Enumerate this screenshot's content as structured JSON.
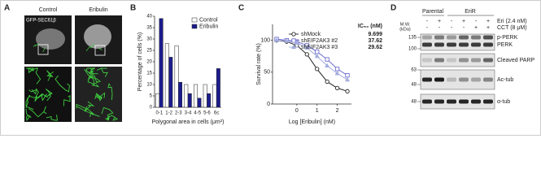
{
  "panel_a": {
    "label": "A",
    "columns": [
      "Control",
      "Eribulin"
    ],
    "marker": "GFP-SEC61β"
  },
  "chart_data": [
    {
      "type": "bar",
      "label": "B",
      "y_label": "Percentage of cells (%)",
      "x_label": "Polygonal area in cells (μm²)",
      "categories": [
        "0-1",
        "1-2",
        "2-3",
        "3-4",
        "4-5",
        "5-6",
        "6≤"
      ],
      "series": [
        {
          "name": "Control",
          "color": "#ffffff",
          "values": [
            6,
            28,
            27,
            10,
            10,
            10,
            10
          ]
        },
        {
          "name": "Eribulin",
          "color": "#1c1c8e",
          "values": [
            39,
            22,
            11,
            6,
            4,
            6,
            17
          ]
        }
      ],
      "ylim": [
        0,
        40
      ],
      "yticks": [
        0,
        5,
        10,
        15,
        20,
        25,
        30,
        35,
        40
      ]
    },
    {
      "type": "line",
      "label": "C",
      "y_label": "Survival rate (%)",
      "x_label": "Log [Eribulin] (nM)",
      "ic50_header": "IC₅₀ (nM)",
      "x": [
        -1,
        -0.5,
        0,
        0.5,
        1,
        1.5,
        2,
        2.5
      ],
      "series": [
        {
          "name": "shMock",
          "color": "#222222",
          "marker": "circle",
          "ic50": "9.699",
          "values": [
            100,
            98,
            92,
            78,
            55,
            35,
            25,
            20
          ]
        },
        {
          "name": "shEIF2AK3 #2",
          "color": "#6e6ecf",
          "marker": "square",
          "ic50": "37.62",
          "values": [
            102,
            100,
            98,
            92,
            82,
            70,
            55,
            45
          ]
        },
        {
          "name": "shEIF2AK3 #3",
          "color": "#a3acdc",
          "marker": "triangle",
          "ic50": "29.62",
          "values": [
            100,
            99,
            96,
            88,
            75,
            60,
            48,
            38
          ]
        }
      ],
      "xlim": [
        -1.2,
        2.7
      ],
      "xticks": [
        0,
        1,
        2
      ],
      "ylim": [
        0,
        125
      ],
      "yticks": [
        0,
        50,
        100
      ]
    }
  ],
  "panel_d": {
    "label": "D",
    "groups": [
      "Parental",
      "EriR"
    ],
    "treatments": [
      {
        "name": "Eri (2.4 nM)",
        "signs": [
          "-",
          "+",
          "-",
          "+",
          "-",
          "+"
        ]
      },
      {
        "name": "CCT (8 μM)",
        "signs": [
          "-",
          "-",
          "-",
          "-",
          "+",
          "+"
        ]
      }
    ],
    "mw_label": [
      "M.W.",
      "(kDa)"
    ],
    "mw": [
      "135",
      "100",
      "63",
      "48",
      "48"
    ],
    "bands": [
      "p-PERK",
      "PERK",
      "Cleaved PARP",
      "Ac-tub",
      "α-tub"
    ]
  }
}
